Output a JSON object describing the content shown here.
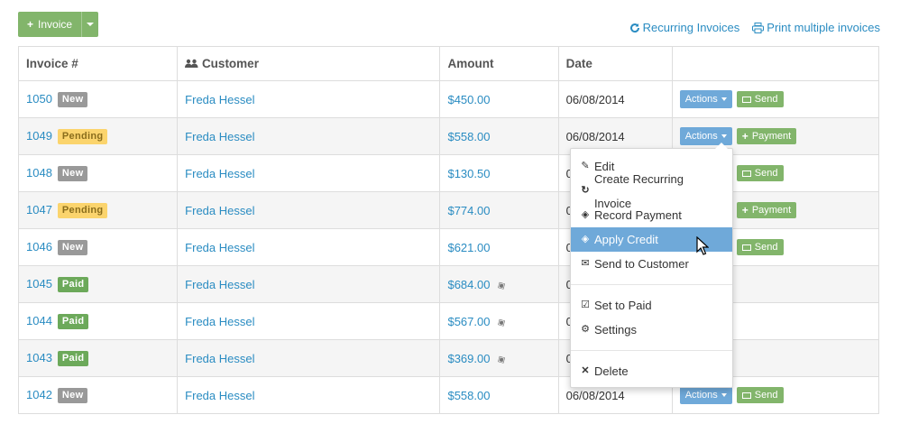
{
  "toolbar": {
    "new_invoice_label": "Invoice"
  },
  "top_links": {
    "recurring": "Recurring Invoices",
    "print": "Print multiple invoices"
  },
  "table": {
    "headers": {
      "invoice": "Invoice #",
      "customer": "Customer",
      "amount": "Amount",
      "date": "Date"
    },
    "rows": [
      {
        "num": "1050",
        "status": "New",
        "customer": "Freda Hessel",
        "amount": "$450.00",
        "date": "06/08/2014",
        "action": "Send"
      },
      {
        "num": "1049",
        "status": "Pending",
        "customer": "Freda Hessel",
        "amount": "$558.00",
        "date": "06/08/2014",
        "action": "Payment"
      },
      {
        "num": "1048",
        "status": "New",
        "customer": "Freda Hessel",
        "amount": "$130.50",
        "date": "0",
        "action": "Send"
      },
      {
        "num": "1047",
        "status": "Pending",
        "customer": "Freda Hessel",
        "amount": "$774.00",
        "date": "0",
        "action": "Payment"
      },
      {
        "num": "1046",
        "status": "New",
        "customer": "Freda Hessel",
        "amount": "$621.00",
        "date": "0",
        "action": "Send"
      },
      {
        "num": "1045",
        "status": "Paid",
        "customer": "Freda Hessel",
        "amount": "$684.00",
        "date": "0",
        "action": ""
      },
      {
        "num": "1044",
        "status": "Paid",
        "customer": "Freda Hessel",
        "amount": "$567.00",
        "date": "0",
        "action": ""
      },
      {
        "num": "1043",
        "status": "Paid",
        "customer": "Freda Hessel",
        "amount": "$369.00",
        "date": "0",
        "action": ""
      },
      {
        "num": "1042",
        "status": "New",
        "customer": "Freda Hessel",
        "amount": "$558.00",
        "date": "06/08/2014",
        "action": "Send"
      }
    ],
    "actions_label": "Actions"
  },
  "menu": {
    "items": [
      "Edit",
      "Create Recurring Invoice",
      "Record Payment",
      "Apply Credit",
      "Send to Customer",
      "Set to Paid",
      "Settings",
      "Delete"
    ],
    "active": "Apply Credit"
  },
  "colors": {
    "link": "#2a8cc2",
    "green": "#82b56b",
    "blue": "#6fa9d9",
    "pending": "#fbd46d",
    "new": "#999999"
  }
}
